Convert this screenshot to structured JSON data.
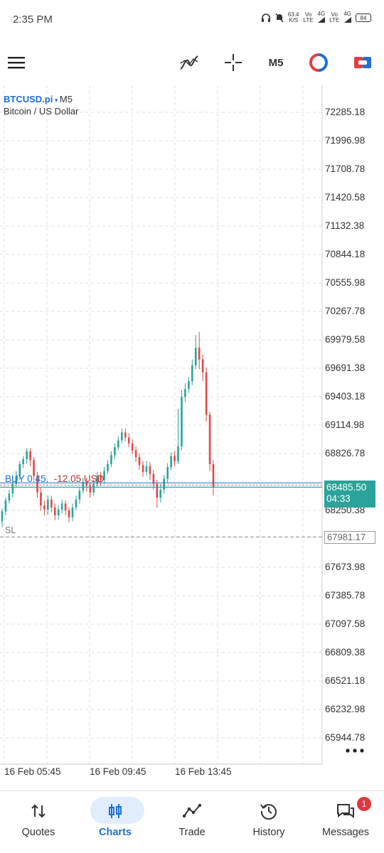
{
  "status_bar": {
    "time": "2:35 PM",
    "net_speed": "63.4",
    "net_unit": "K/S",
    "vo1": "Vo",
    "lte1": "LTE",
    "g1": "4G",
    "vo2": "Vo",
    "lte2": "LTE",
    "g2": "4G",
    "battery": "84"
  },
  "toolbar": {
    "timeframe": "M5"
  },
  "chart": {
    "symbol": "BTCUSD.pi",
    "timeframe": "M5",
    "description": "Bitcoin / US Dollar",
    "position_label": "BUY 0.45,",
    "position_pl": "-12.05 USD",
    "sl_label": "SL",
    "bid_price": "68485.50",
    "bid_timer": "04:33",
    "sl_price": "67981.17",
    "colors": {
      "up": "#2ba39a",
      "down": "#e04848",
      "grid": "#dddddd",
      "position": "#1e6fd0",
      "sl": "#888888"
    }
  },
  "chart_data": {
    "type": "candlestick",
    "y_ticks": [
      "72285.18",
      "71996.98",
      "71708.78",
      "71420.58",
      "71132.38",
      "70844.18",
      "70555.98",
      "70267.78",
      "69979.58",
      "69691.38",
      "69403.18",
      "69114.98",
      "68826.78",
      "68250.38",
      "67673.98",
      "67385.78",
      "67097.58",
      "66809.38",
      "66521.18",
      "66232.98",
      "65944.78"
    ],
    "x_ticks": [
      "16 Feb 05:45",
      "16 Feb 09:45",
      "16 Feb 13:45"
    ],
    "ylim": [
      65800,
      72400
    ],
    "levels": {
      "position": 68530,
      "bid": 68485.5,
      "sl": 67981.17
    },
    "grid": true
  },
  "nav": {
    "items": [
      {
        "label": "Quotes"
      },
      {
        "label": "Charts"
      },
      {
        "label": "Trade"
      },
      {
        "label": "History"
      },
      {
        "label": "Messages"
      }
    ],
    "messages_badge": "1"
  }
}
